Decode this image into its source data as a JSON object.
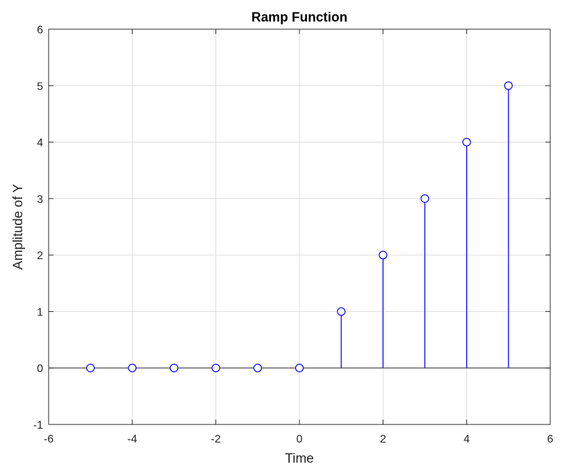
{
  "chart_data": {
    "type": "stem",
    "title": "Ramp Function",
    "xlabel": "Time",
    "ylabel": "Amplitude of Y",
    "xlim": [
      -6,
      6
    ],
    "ylim": [
      -1,
      6
    ],
    "xticks": [
      -6,
      -4,
      -2,
      0,
      2,
      4,
      6
    ],
    "yticks": [
      -1,
      0,
      1,
      2,
      3,
      4,
      5,
      6
    ],
    "grid": true,
    "baseline": 0,
    "marker": "circle",
    "series": [
      {
        "x": [
          -5,
          -4,
          -3,
          -2,
          -1,
          0,
          1,
          2,
          3,
          4,
          5
        ],
        "y": [
          0,
          0,
          0,
          0,
          0,
          0,
          1,
          2,
          3,
          4,
          5
        ],
        "color": "#0000ff"
      }
    ]
  }
}
